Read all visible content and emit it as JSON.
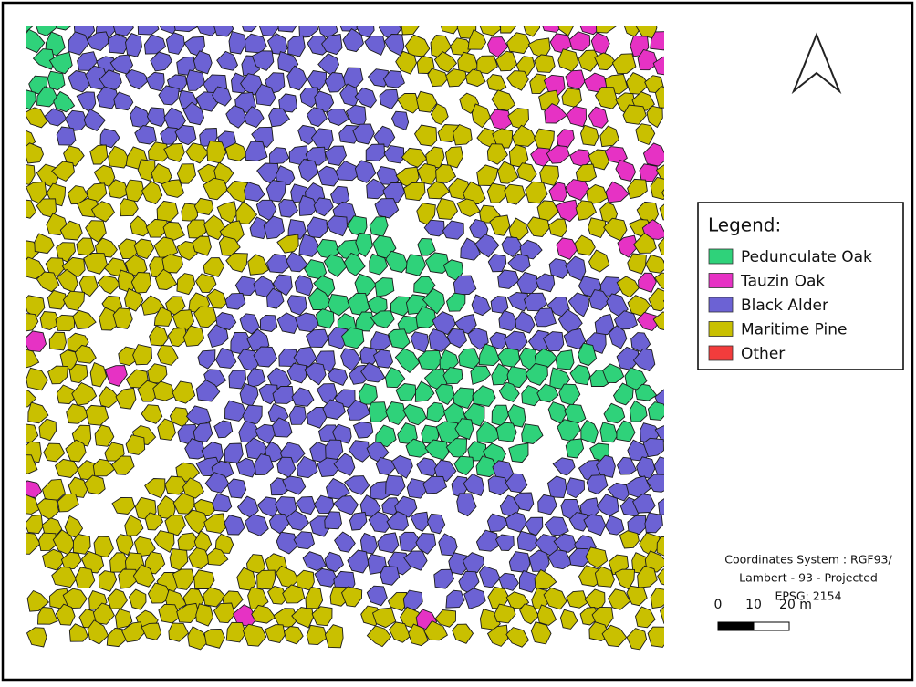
{
  "legend": {
    "title": "Legend:",
    "items": [
      {
        "label": "Pedunculate Oak",
        "color": "#2fd27a"
      },
      {
        "label": "Tauzin Oak",
        "color": "#e632c4"
      },
      {
        "label": "Black Alder",
        "color": "#6c62d4"
      },
      {
        "label": "Maritime Pine",
        "color": "#c9c000"
      },
      {
        "label": "Other",
        "color": "#f23c3c"
      }
    ]
  },
  "coordinates": [
    "Coordinates System : RGF93/",
    "Lambert - 93 - Projected",
    "EPSG: 2154"
  ],
  "scale_bar": {
    "labels": [
      "0",
      "10",
      "20 m"
    ]
  }
}
